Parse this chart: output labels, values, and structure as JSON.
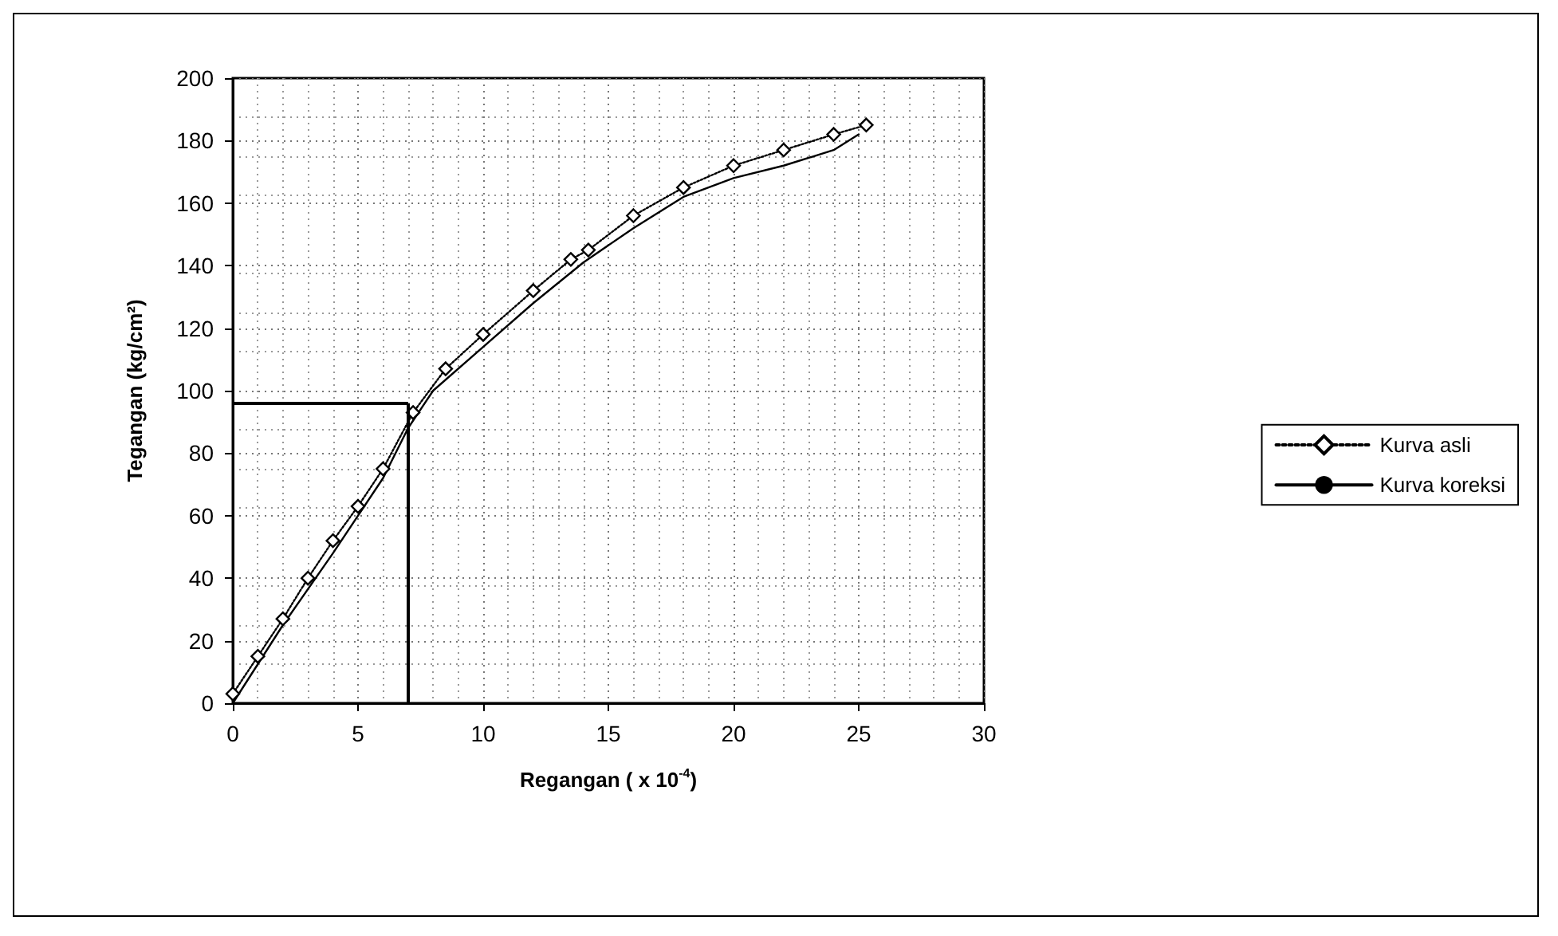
{
  "chart_data": {
    "type": "line",
    "xlabel": "Regangan ( x 10$^{-4}$)",
    "ylabel": "Tegangan (kg/cm²)",
    "xlim": [
      0,
      30
    ],
    "xticks": [
      0,
      5,
      10,
      15,
      20,
      25,
      30
    ],
    "ylim": [
      0,
      200
    ],
    "yticks": [
      0,
      20,
      40,
      60,
      80,
      100,
      120,
      140,
      160,
      180,
      200
    ],
    "grid": true,
    "legend": "right",
    "series": [
      {
        "name": "Kurva asli",
        "color": "#000000",
        "line_style": "dotted",
        "marker": "diamond",
        "x": [
          0,
          1,
          2,
          3,
          4,
          5,
          6,
          7.2,
          8.5,
          10,
          12,
          13.5,
          14.2,
          16,
          18,
          20,
          22,
          24,
          25.3
        ],
        "values": [
          3,
          15,
          27,
          40,
          52,
          63,
          75,
          93,
          107,
          118,
          132,
          142,
          145,
          156,
          165,
          172,
          177,
          182,
          185
        ]
      },
      {
        "name": "Kurva koreksi",
        "color": "#000000",
        "line_style": "solid",
        "marker": "none",
        "x": [
          0,
          2,
          4,
          6,
          7,
          8,
          10,
          12,
          14,
          16,
          18,
          20,
          22,
          24,
          25
        ],
        "values": [
          0,
          25,
          48,
          72,
          88,
          100,
          114,
          128,
          141,
          152,
          162,
          168,
          172,
          177,
          182
        ]
      }
    ],
    "ref_lines": [
      {
        "axis": "y",
        "value": 96,
        "color": "#000000",
        "line_style": "solid"
      },
      {
        "axis": "x",
        "value": 7,
        "color": "#000000",
        "line_style": "solid"
      }
    ]
  }
}
